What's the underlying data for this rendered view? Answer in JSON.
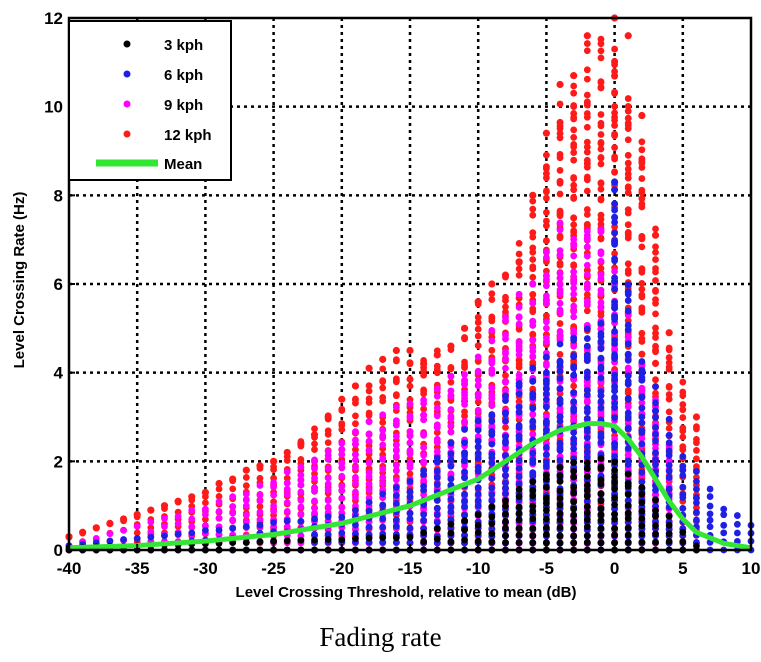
{
  "caption": "Fading rate",
  "chart_data": {
    "type": "scatter",
    "xlabel": "Level Crossing Threshold, relative to mean (dB)",
    "ylabel": "Level Crossing Rate (Hz)",
    "xlim": [
      -40,
      10
    ],
    "ylim": [
      0,
      12
    ],
    "xticks": [
      -40,
      -35,
      -30,
      -25,
      -20,
      -15,
      -10,
      -5,
      0,
      5,
      10
    ],
    "yticks": [
      0,
      2,
      4,
      6,
      8,
      10,
      12
    ],
    "grid": true,
    "legend_position": "top-left",
    "series": [
      {
        "name": "3 kph",
        "color": "#000000",
        "marker": "dot",
        "envelope": {
          "x": [
            -40,
            -15,
            -10,
            -8,
            -5,
            -3,
            -1,
            0,
            2,
            4,
            5,
            6
          ],
          "y": [
            0.05,
            0.3,
            0.8,
            1.2,
            1.8,
            2.0,
            2.2,
            2.1,
            1.5,
            0.8,
            0.4,
            0.1
          ]
        }
      },
      {
        "name": "6 kph",
        "color": "#1f1fe6",
        "marker": "dot",
        "envelope": {
          "x": [
            -40,
            -20,
            -15,
            -10,
            -6,
            -3,
            -1,
            0,
            2,
            5,
            8,
            10
          ],
          "y": [
            0.1,
            0.8,
            1.6,
            3.0,
            4.2,
            5.0,
            5.4,
            8.3,
            4.5,
            2.2,
            1.0,
            0.6
          ]
        }
      },
      {
        "name": "9 kph",
        "color": "#ff00ff",
        "marker": "dot",
        "envelope": {
          "x": [
            -40,
            -30,
            -25,
            -20,
            -15,
            -10,
            -6,
            -4,
            -2,
            -1,
            0,
            2,
            4
          ],
          "y": [
            0.1,
            1.0,
            1.6,
            2.6,
            3.4,
            4.5,
            6.4,
            7.4,
            7.6,
            7.4,
            6.5,
            4.5,
            2.5
          ]
        }
      },
      {
        "name": "12 kph",
        "color": "#ff1a1a",
        "marker": "dot",
        "points": [
          {
            "x": -40,
            "y": 0.3
          },
          {
            "x": -39,
            "y": 0.4
          },
          {
            "x": -38,
            "y": 0.5
          },
          {
            "x": -37,
            "y": 0.6
          },
          {
            "x": -36,
            "y": 0.7
          },
          {
            "x": -35,
            "y": 0.8
          },
          {
            "x": -34,
            "y": 0.9
          },
          {
            "x": -33,
            "y": 1.0
          },
          {
            "x": -32,
            "y": 1.1
          },
          {
            "x": -31,
            "y": 1.2
          },
          {
            "x": -30,
            "y": 1.3
          },
          {
            "x": -29,
            "y": 1.5
          },
          {
            "x": -28,
            "y": 1.6
          },
          {
            "x": -27,
            "y": 1.8
          },
          {
            "x": -26,
            "y": 1.9
          },
          {
            "x": -25,
            "y": 2.0
          },
          {
            "x": -24,
            "y": 2.2
          },
          {
            "x": -23,
            "y": 2.4
          },
          {
            "x": -22,
            "y": 2.6
          },
          {
            "x": -21,
            "y": 3.0
          },
          {
            "x": -20,
            "y": 3.4
          },
          {
            "x": -19,
            "y": 3.7
          },
          {
            "x": -18,
            "y": 4.1
          },
          {
            "x": -17,
            "y": 4.3
          },
          {
            "x": -16,
            "y": 4.5
          },
          {
            "x": -15,
            "y": 4.5
          },
          {
            "x": -14,
            "y": 4.2
          },
          {
            "x": -13,
            "y": 4.4
          },
          {
            "x": -12,
            "y": 4.6
          },
          {
            "x": -11,
            "y": 5.0
          },
          {
            "x": -10,
            "y": 5.6
          },
          {
            "x": -9,
            "y": 6.0
          },
          {
            "x": -8,
            "y": 6.2
          },
          {
            "x": -7,
            "y": 6.5
          },
          {
            "x": -6,
            "y": 8.0
          },
          {
            "x": -5,
            "y": 9.4
          },
          {
            "x": -4,
            "y": 10.5
          },
          {
            "x": -3,
            "y": 10.7
          },
          {
            "x": -2,
            "y": 11.6
          },
          {
            "x": 0,
            "y": 12.0
          },
          {
            "x": 1,
            "y": 11.6
          },
          {
            "x": 2,
            "y": 9.8
          },
          {
            "x": 3,
            "y": 7.1
          },
          {
            "x": 4,
            "y": 4.9
          },
          {
            "x": 6,
            "y": 3.0
          }
        ],
        "envelope": {
          "x": [
            -40,
            -30,
            -25,
            -20,
            -16,
            -12,
            -10,
            -8,
            -6,
            -4,
            -2,
            0,
            2,
            4,
            6
          ],
          "y": [
            0.3,
            1.3,
            2.0,
            3.4,
            4.5,
            4.6,
            5.6,
            6.2,
            8.0,
            10.5,
            11.6,
            12.0,
            9.8,
            4.9,
            3.0
          ]
        }
      },
      {
        "name": "Mean",
        "color": "#33e633",
        "marker": "line",
        "x": [
          -40,
          -35,
          -30,
          -25,
          -20,
          -15,
          -10,
          -8,
          -6,
          -4,
          -2,
          -1,
          0,
          1,
          2,
          3,
          4,
          5,
          6,
          8,
          10
        ],
        "y": [
          0.05,
          0.1,
          0.2,
          0.35,
          0.6,
          1.0,
          1.6,
          2.0,
          2.4,
          2.7,
          2.85,
          2.85,
          2.8,
          2.5,
          2.1,
          1.6,
          1.1,
          0.7,
          0.4,
          0.15,
          0.05
        ]
      }
    ]
  }
}
